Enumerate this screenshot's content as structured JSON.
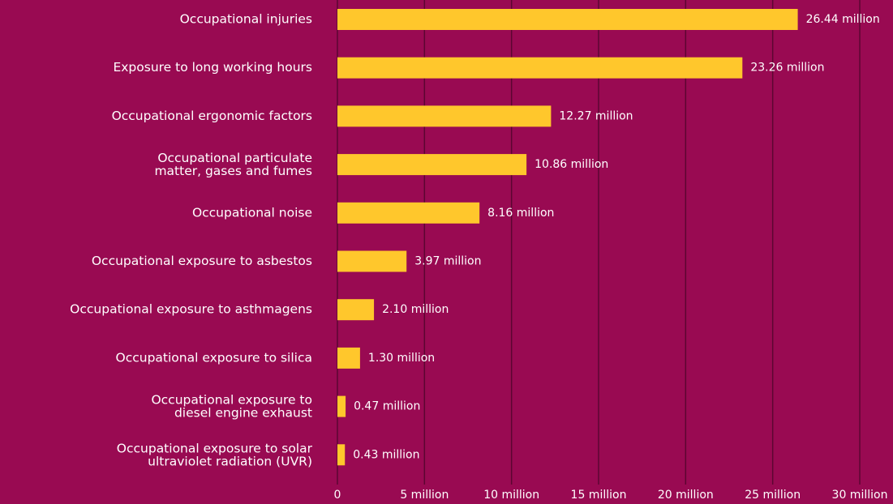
{
  "chart_data": {
    "type": "bar",
    "orientation": "horizontal",
    "categories": [
      "Occupational injuries",
      "Exposure to long working hours",
      "Occupational ergonomic factors",
      "Occupational particulate\nmatter, gases and fumes",
      "Occupational noise",
      "Occupational exposure to asbestos",
      "Occupational exposure to asthmagens",
      "Occupational exposure to silica",
      "Occupational exposure to\ndiesel engine exhaust",
      "Occupational exposure to solar\nultraviolet radiation (UVR)"
    ],
    "values": [
      26.44,
      23.26,
      12.27,
      10.86,
      8.16,
      3.97,
      2.1,
      1.3,
      0.47,
      0.43
    ],
    "value_labels": [
      "26.44 million",
      "23.26 million",
      "12.27 million",
      "10.86 million",
      "8.16 million",
      "3.97 million",
      "2.10 million",
      "1.30 million",
      "0.47 million",
      "0.43 million"
    ],
    "color": "#ffc72c",
    "xlim": [
      0,
      30
    ],
    "xticks": [
      0,
      {
        "value": 5,
        "label": "5 million"
      },
      {
        "value": 10,
        "label": "10 million"
      },
      {
        "value": 15,
        "label": "15 million"
      },
      {
        "value": 20,
        "label": "20 million"
      },
      {
        "value": 25,
        "label": "25 million"
      },
      {
        "value": 30,
        "label": "30 million"
      }
    ],
    "grid": true
  }
}
